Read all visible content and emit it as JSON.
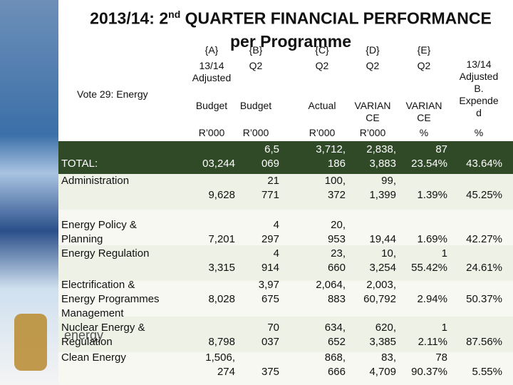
{
  "header": {
    "title_start": "2013/14: 2",
    "title_sup": "nd",
    "title_rest": " QUARTER FINANCIAL PERFORMANCE",
    "title_line2": "per Programme"
  },
  "vote": "Vote 29: Energy",
  "logo_text": "energy",
  "table": {
    "columns": [
      [
        "{A}",
        "13/14\nAdjusted",
        "Budget",
        "R’000"
      ],
      [
        "{B}",
        "Q2",
        "Budget",
        "R’000"
      ],
      [
        "{C}",
        "Q2",
        "Actual",
        "R’000"
      ],
      [
        "{D}",
        "Q2",
        "VARIAN\nCE",
        "R’000"
      ],
      [
        "{E}",
        "Q2",
        "VARIAN\nCE",
        "%"
      ],
      [
        "",
        "13/14\nAdjusted\nB.\nExpende\nd",
        "",
        "%"
      ]
    ],
    "rows": [
      [
        "TOTAL:",
        "03,244",
        "6,5\n069",
        "3,712,\n186",
        "2,838,\n3,883",
        "87\n23.54%",
        "43.64%"
      ],
      [
        "Administration",
        "9,628",
        "21\n771",
        "100,\n372",
        "99,\n1,399",
        "1.39%",
        "45.25%"
      ],
      [
        "Energy Policy &\nPlanning",
        "7,201",
        "4\n297",
        "20,\n953",
        "19,44",
        "1.69%",
        "42.27%"
      ],
      [
        "Energy Regulation",
        "3,315",
        "4\n914",
        "23,\n660",
        "10,\n3,254",
        "1\n55.42%",
        "24.61%"
      ],
      [
        "Electrification &\nEnergy Programmes\nManagement",
        "8,028",
        "3,97\n675",
        "2,064,\n883",
        "2,003,\n60,792",
        "2.94%",
        "50.37%"
      ],
      [
        "Nuclear Energy &\nRegulation",
        "8,798",
        "70\n037",
        "634,\n652",
        "620,\n3,385",
        "1\n2.11%",
        "87.56%"
      ],
      [
        "Clean Energy",
        "1,506,\n274",
        "375",
        "868,\n666",
        "83,\n4,709",
        "78\n90.37%",
        "5.55%"
      ]
    ]
  }
}
